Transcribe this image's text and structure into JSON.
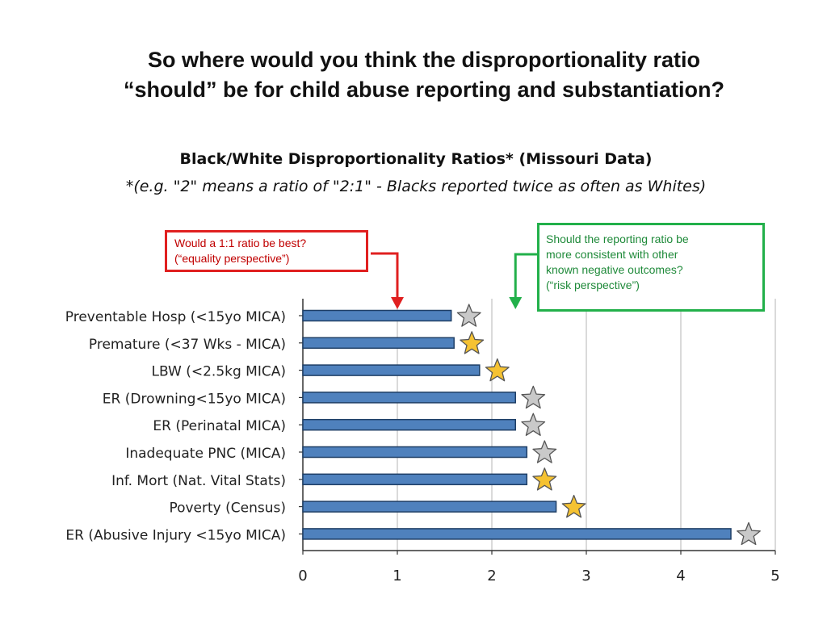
{
  "slide": {
    "title_line1": "So where would you think  the disproportionality ratio",
    "title_line2": "“should” be for child abuse reporting and substantiation?"
  },
  "callouts": {
    "red": {
      "lines": [
        "Would a 1:1 ratio be best?",
        "(“equality perspective”)"
      ],
      "color": "#e02020",
      "points_to_x": 1
    },
    "green": {
      "lines": [
        "Should the reporting ratio be",
        "more consistent with other",
        "known negative outcomes?",
        "(“risk perspective”)"
      ],
      "color": "#22b04a",
      "points_to_x": 2.25
    }
  },
  "chart_data": {
    "type": "bar",
    "orientation": "horizontal",
    "title": "Black/White  Disproportionality  Ratios*  (Missouri  Data)",
    "subtitle": "*(e.g. \"2\" means a ratio of \"2:1\" - Blacks reported twice as often as Whites)",
    "categories": [
      "Preventable Hosp (<15yo MICA)",
      "Premature (<37 Wks - MICA)",
      "LBW (<2.5kg MICA)",
      "ER (Drowning<15yo MICA)",
      "ER (Perinatal MICA)",
      "Inadequate PNC (MICA)",
      "Inf. Mort (Nat. Vital Stats)",
      "Poverty (Census)",
      "ER (Abusive Injury <15yo MICA)"
    ],
    "values": [
      1.57,
      1.6,
      1.87,
      2.25,
      2.25,
      2.37,
      2.37,
      2.68,
      4.53
    ],
    "star_colors": [
      "gray",
      "gold",
      "gold",
      "gray",
      "gray",
      "gray",
      "gold",
      "gold",
      "gray"
    ],
    "xlim": [
      0,
      5
    ],
    "xticks": [
      "0",
      "1",
      "2",
      "3",
      "4",
      "5"
    ],
    "grid": "vertical",
    "colors": {
      "bar": "#4f81bd",
      "bar_edge": "#1f3f66",
      "star_gray": "#c9c9c9",
      "star_gold": "#f5c232",
      "star_edge": "#555555",
      "grid": "#b5b5b5"
    }
  }
}
